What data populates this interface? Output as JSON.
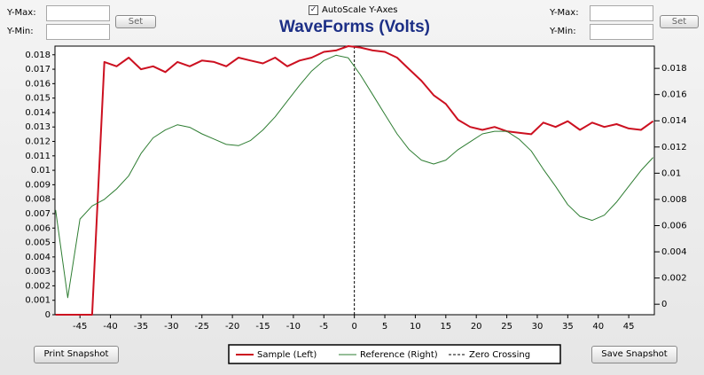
{
  "left_controls": {
    "max_label": "Y-Max:",
    "min_label": "Y-Min:",
    "button": "Set"
  },
  "right_controls": {
    "max_label": "Y-Max:",
    "min_label": "Y-Min:",
    "button": "Set"
  },
  "autoscale_label": "AutoScale Y-Axes",
  "buttons": [
    "Print Snapshot",
    "Save Snapshot"
  ],
  "chart_data": {
    "type": "line",
    "title": "WaveForms (Volts)",
    "x": [
      -49,
      -47,
      -45,
      -43,
      -41,
      -39,
      -37,
      -35,
      -33,
      -31,
      -29,
      -27,
      -25,
      -23,
      -21,
      -19,
      -17,
      -15,
      -13,
      -11,
      -9,
      -7,
      -5,
      -3,
      -1,
      1,
      3,
      5,
      7,
      9,
      11,
      13,
      15,
      17,
      19,
      21,
      23,
      25,
      27,
      29,
      31,
      33,
      35,
      37,
      39,
      41,
      43,
      45,
      47,
      49
    ],
    "series": [
      {
        "name": "Sample (Left)",
        "color": "#cc1020",
        "values": [
          0,
          0,
          0,
          0,
          0.0175,
          0.0172,
          0.0178,
          0.017,
          0.0172,
          0.0168,
          0.0175,
          0.0172,
          0.0176,
          0.0175,
          0.0172,
          0.0178,
          0.0176,
          0.0174,
          0.0178,
          0.0172,
          0.0176,
          0.0178,
          0.0182,
          0.0183,
          0.0186,
          0.0185,
          0.0183,
          0.0182,
          0.0178,
          0.017,
          0.0162,
          0.0152,
          0.0146,
          0.0135,
          0.013,
          0.0128,
          0.013,
          0.0127,
          0.0126,
          0.0125,
          0.0133,
          0.013,
          0.0134,
          0.0128,
          0.0133,
          0.013,
          0.0132,
          0.0129,
          0.0128,
          0.0134
        ]
      },
      {
        "name": "Reference (Right)",
        "color": "#2e7d32",
        "axis": "y2",
        "values": [
          0.0072,
          0.0005,
          0.0065,
          0.0075,
          0.008,
          0.0088,
          0.0098,
          0.0115,
          0.0127,
          0.0133,
          0.0137,
          0.0135,
          0.013,
          0.0126,
          0.0122,
          0.0121,
          0.0125,
          0.0133,
          0.0143,
          0.0155,
          0.0167,
          0.0178,
          0.0186,
          0.019,
          0.0188,
          0.0175,
          0.016,
          0.0145,
          0.013,
          0.0118,
          0.011,
          0.0107,
          0.011,
          0.0118,
          0.0124,
          0.013,
          0.0132,
          0.0132,
          0.0126,
          0.0117,
          0.0103,
          0.009,
          0.0076,
          0.0067,
          0.0064,
          0.0068,
          0.0078,
          0.009,
          0.0102,
          0.0112
        ]
      }
    ],
    "vlines": [
      {
        "name": "Zero Crossing",
        "x": 0
      }
    ],
    "xlim": [
      -49.1,
      49.2
    ],
    "xticks": [
      -45,
      -40,
      -35,
      -30,
      -25,
      -20,
      -15,
      -10,
      -5,
      0,
      5,
      10,
      15,
      20,
      25,
      30,
      35,
      40,
      45
    ],
    "ylim": [
      0,
      0.0186
    ],
    "yticks": [
      0,
      0.001,
      0.002,
      0.003,
      0.004,
      0.005,
      0.006,
      0.007,
      0.008,
      0.009,
      0.01,
      0.011,
      0.012,
      0.013,
      0.014,
      0.015,
      0.016,
      0.017,
      0.018
    ],
    "y2lim": [
      -0.0008,
      0.0197
    ],
    "y2ticks": [
      0,
      0.002,
      0.004,
      0.006,
      0.008,
      0.01,
      0.012,
      0.014,
      0.016,
      0.018
    ],
    "legend": "bottom"
  }
}
